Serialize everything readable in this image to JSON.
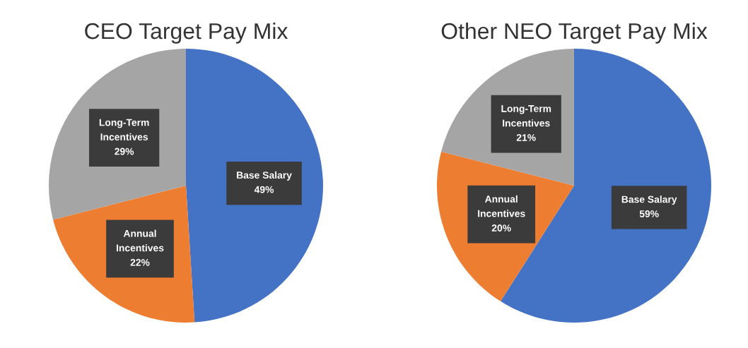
{
  "chart_data": [
    {
      "type": "pie",
      "title": "CEO Target Pay Mix",
      "categories": [
        "Base Salary",
        "Annual\nIncentives",
        "Long-Term\nIncentives"
      ],
      "values": [
        49,
        22,
        29
      ],
      "colors": [
        "#4472c4",
        "#ed7d31",
        "#a5a5a5"
      ],
      "value_labels": [
        "49%",
        "22%",
        "29%"
      ]
    },
    {
      "type": "pie",
      "title": "Other NEO Target Pay Mix",
      "categories": [
        "Base Salary",
        "Annual\nIncentives",
        "Long-Term\nIncentives"
      ],
      "values": [
        59,
        20,
        21
      ],
      "colors": [
        "#4472c4",
        "#ed7d31",
        "#a5a5a5"
      ],
      "value_labels": [
        "59%",
        "20%",
        "21%"
      ]
    }
  ]
}
